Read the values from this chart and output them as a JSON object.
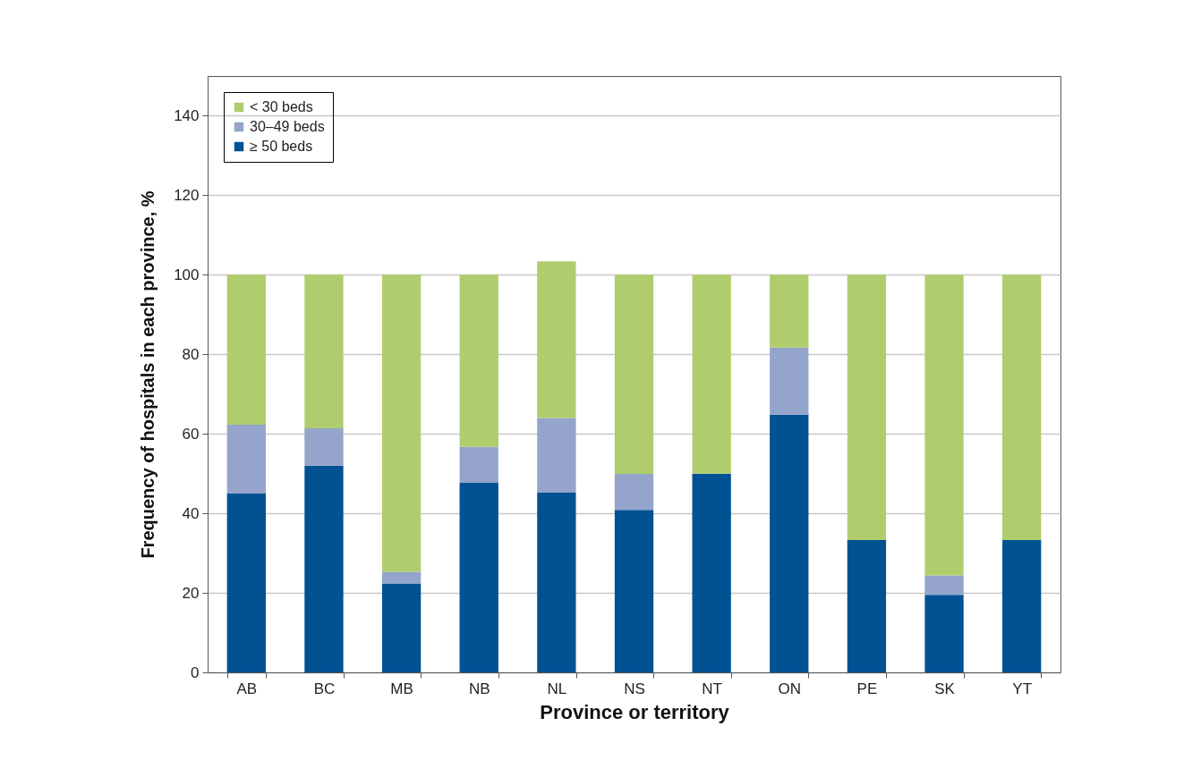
{
  "chart_data": {
    "type": "bar",
    "stacked": true,
    "xlabel": "Province or territory",
    "ylabel": "Frequency of hospitals in each province, %",
    "categories": [
      "AB",
      "BC",
      "MB",
      "NB",
      "NL",
      "NS",
      "NT",
      "ON",
      "PE",
      "SK",
      "YT"
    ],
    "series": [
      {
        "name": "≥ 50 beds",
        "color": "#005293",
        "values": [
          45.0,
          52.0,
          22.4,
          47.7,
          45.2,
          40.9,
          50.0,
          64.8,
          33.3,
          19.5,
          33.3
        ]
      },
      {
        "name": "30–49 beds",
        "color": "#94a4cb",
        "values": [
          17.3,
          9.4,
          2.9,
          9.0,
          18.8,
          9.0,
          0,
          16.9,
          0,
          4.9,
          0
        ]
      },
      {
        "name": "< 30 beds",
        "color": "#b0cd6e",
        "values": [
          37.7,
          38.6,
          74.7,
          43.3,
          39.4,
          50.1,
          50.0,
          18.3,
          66.7,
          75.6,
          66.7
        ]
      }
    ],
    "ylim": [
      0,
      150
    ],
    "yticks": [
      0,
      20,
      40,
      60,
      80,
      100,
      120,
      140
    ],
    "grid": "y",
    "legend": "top left"
  }
}
